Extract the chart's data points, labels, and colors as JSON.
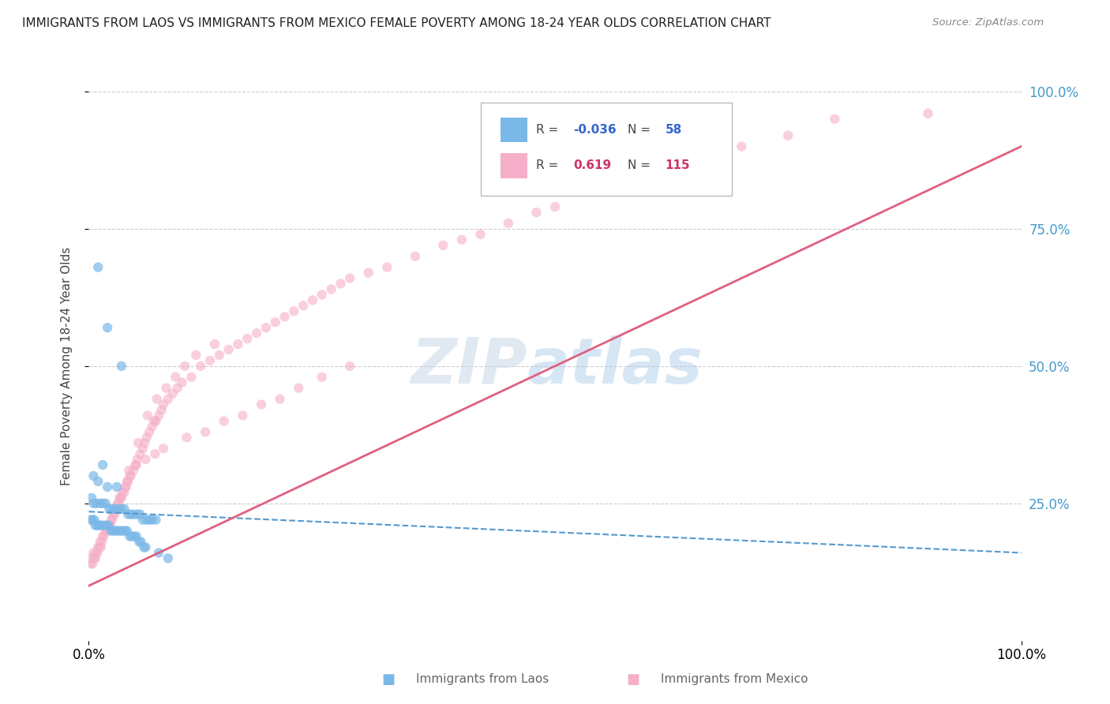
{
  "title": "IMMIGRANTS FROM LAOS VS IMMIGRANTS FROM MEXICO FEMALE POVERTY AMONG 18-24 YEAR OLDS CORRELATION CHART",
  "source": "Source: ZipAtlas.com",
  "ylabel": "Female Poverty Among 18-24 Year Olds",
  "legend_laos_label": "Immigrants from Laos",
  "legend_mexico_label": "Immigrants from Mexico",
  "legend_R_laos": "-0.036",
  "legend_N_laos": "58",
  "legend_R_mexico": "0.619",
  "legend_N_mexico": "115",
  "watermark": "ZIPatlas",
  "laos_color": "#7ab8e8",
  "mexico_color": "#f5afc8",
  "laos_line_color": "#5599cc",
  "mexico_line_color": "#e06080",
  "background_color": "#ffffff",
  "grid_color": "#cccccc",
  "laos_x": [
    1.0,
    2.0,
    3.5,
    1.5,
    0.5,
    1.0,
    2.0,
    3.0,
    0.3,
    0.5,
    0.8,
    1.2,
    1.5,
    1.8,
    2.2,
    2.5,
    2.8,
    3.2,
    3.5,
    3.8,
    4.2,
    4.5,
    4.8,
    5.2,
    5.5,
    5.8,
    6.2,
    6.5,
    6.8,
    7.2,
    0.2,
    0.4,
    0.6,
    0.7,
    0.9,
    1.1,
    1.3,
    1.6,
    1.9,
    2.1,
    2.4,
    2.6,
    2.9,
    3.1,
    3.4,
    3.6,
    3.9,
    4.1,
    4.4,
    4.6,
    4.9,
    5.1,
    5.4,
    5.6,
    5.9,
    6.1,
    7.5,
    8.5
  ],
  "laos_y": [
    68.0,
    57.0,
    50.0,
    32.0,
    30.0,
    29.0,
    28.0,
    28.0,
    26.0,
    25.0,
    25.0,
    25.0,
    25.0,
    25.0,
    24.0,
    24.0,
    24.0,
    24.0,
    24.0,
    24.0,
    23.0,
    23.0,
    23.0,
    23.0,
    23.0,
    22.0,
    22.0,
    22.0,
    22.0,
    22.0,
    22.0,
    22.0,
    22.0,
    21.0,
    21.0,
    21.0,
    21.0,
    21.0,
    21.0,
    21.0,
    20.0,
    20.0,
    20.0,
    20.0,
    20.0,
    20.0,
    20.0,
    20.0,
    19.0,
    19.0,
    19.0,
    19.0,
    18.0,
    18.0,
    17.0,
    17.0,
    16.0,
    15.0
  ],
  "mexico_x": [
    0.3,
    0.5,
    0.8,
    1.0,
    1.2,
    1.5,
    1.8,
    2.0,
    2.2,
    2.5,
    2.8,
    3.0,
    3.2,
    3.5,
    3.8,
    4.0,
    4.2,
    4.5,
    4.8,
    5.0,
    5.2,
    5.5,
    5.8,
    6.0,
    6.2,
    6.5,
    6.8,
    7.0,
    7.2,
    7.5,
    7.8,
    8.0,
    8.5,
    9.0,
    9.5,
    10.0,
    11.0,
    12.0,
    13.0,
    14.0,
    15.0,
    16.0,
    17.0,
    18.0,
    19.0,
    20.0,
    21.0,
    22.0,
    23.0,
    24.0,
    25.0,
    26.0,
    27.0,
    28.0,
    30.0,
    32.0,
    35.0,
    38.0,
    40.0,
    42.0,
    45.0,
    48.0,
    50.0,
    55.0,
    58.0,
    60.0,
    65.0,
    70.0,
    75.0,
    80.0,
    0.4,
    0.6,
    0.9,
    1.1,
    1.4,
    1.6,
    1.9,
    2.1,
    2.4,
    2.6,
    2.9,
    3.1,
    3.4,
    3.6,
    3.9,
    4.1,
    4.4,
    5.1,
    6.1,
    7.1,
    8.0,
    10.5,
    12.5,
    14.5,
    16.5,
    18.5,
    20.5,
    22.5,
    25.0,
    28.0,
    0.2,
    0.7,
    1.3,
    2.3,
    3.3,
    4.3,
    5.3,
    6.3,
    7.3,
    8.3,
    9.3,
    10.3,
    11.5,
    13.5,
    90.0
  ],
  "mexico_y": [
    15.0,
    16.0,
    16.0,
    17.0,
    18.0,
    19.0,
    20.0,
    20.0,
    21.0,
    22.0,
    23.0,
    24.0,
    25.0,
    26.0,
    27.0,
    28.0,
    29.0,
    30.0,
    31.0,
    32.0,
    33.0,
    34.0,
    35.0,
    36.0,
    37.0,
    38.0,
    39.0,
    40.0,
    40.0,
    41.0,
    42.0,
    43.0,
    44.0,
    45.0,
    46.0,
    47.0,
    48.0,
    50.0,
    51.0,
    52.0,
    53.0,
    54.0,
    55.0,
    56.0,
    57.0,
    58.0,
    59.0,
    60.0,
    61.0,
    62.0,
    63.0,
    64.0,
    65.0,
    66.0,
    67.0,
    68.0,
    70.0,
    72.0,
    73.0,
    74.0,
    76.0,
    78.0,
    79.0,
    82.0,
    84.0,
    85.0,
    88.0,
    90.0,
    92.0,
    95.0,
    14.0,
    15.0,
    16.0,
    17.0,
    18.0,
    19.0,
    20.0,
    21.0,
    22.0,
    23.0,
    24.0,
    25.0,
    26.0,
    27.0,
    28.0,
    29.0,
    30.0,
    32.0,
    33.0,
    34.0,
    35.0,
    37.0,
    38.0,
    40.0,
    41.0,
    43.0,
    44.0,
    46.0,
    48.0,
    50.0,
    14.0,
    15.0,
    17.0,
    21.0,
    26.0,
    31.0,
    36.0,
    41.0,
    44.0,
    46.0,
    48.0,
    50.0,
    52.0,
    54.0,
    96.0
  ],
  "xlim": [
    0,
    100
  ],
  "ylim": [
    0,
    100
  ],
  "laos_trend_x0": 0,
  "laos_trend_x1": 100,
  "laos_trend_y0": 23.5,
  "laos_trend_y1": 16.0,
  "mexico_trend_x0": 0,
  "mexico_trend_x1": 100,
  "mexico_trend_y0": 10.0,
  "mexico_trend_y1": 90.0
}
